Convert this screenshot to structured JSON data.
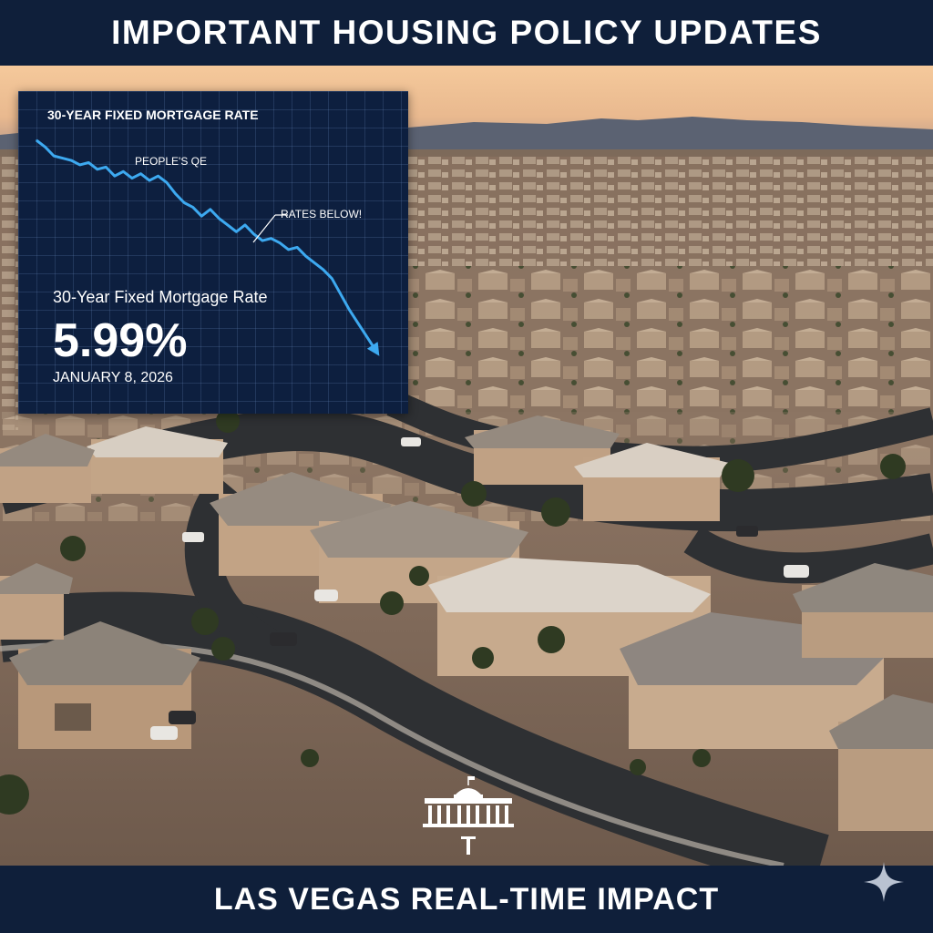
{
  "header": {
    "title": "IMPORTANT HOUSING POLICY UPDATES"
  },
  "chart_card": {
    "title": "30-YEAR FIXED MORTGAGE RATE",
    "annotation_qe": "PEOPLE'S QE",
    "annotation_below": "RATES BELOW!",
    "rate_label": "30-Year Fixed Mortgage Rate",
    "rate_value": "5.99%",
    "rate_date": "JANUARY 8, 2026",
    "line_color": "#3da9f0"
  },
  "chart_data": {
    "type": "line",
    "title": "30-YEAR FIXED MORTGAGE RATE",
    "xlabel": "",
    "ylabel": "",
    "grid": true,
    "legend": "none",
    "series": [
      {
        "values": [
          100,
          97,
          93,
          92,
          91,
          89,
          90,
          87,
          88,
          84,
          86,
          83,
          85,
          82,
          84,
          81,
          76,
          72,
          70,
          66,
          69,
          65,
          62,
          59,
          62,
          58,
          55,
          56,
          54,
          51,
          52,
          48,
          45,
          42,
          38,
          31,
          24,
          18,
          12,
          6
        ]
      }
    ],
    "annotations": [
      "PEOPLE'S QE",
      "RATES BELOW!"
    ]
  },
  "footer": {
    "title": "LAS VEGAS REAL-TIME IMPACT"
  },
  "colors": {
    "banner_bg": "#0f1f3a",
    "card_bg": "#0d1f3f",
    "accent_line": "#3da9f0",
    "sky_top": "#f2c79a",
    "mountains": "#5b6272"
  },
  "icons": {
    "logo": "white-house-icon",
    "corner": "sparkle-icon"
  }
}
